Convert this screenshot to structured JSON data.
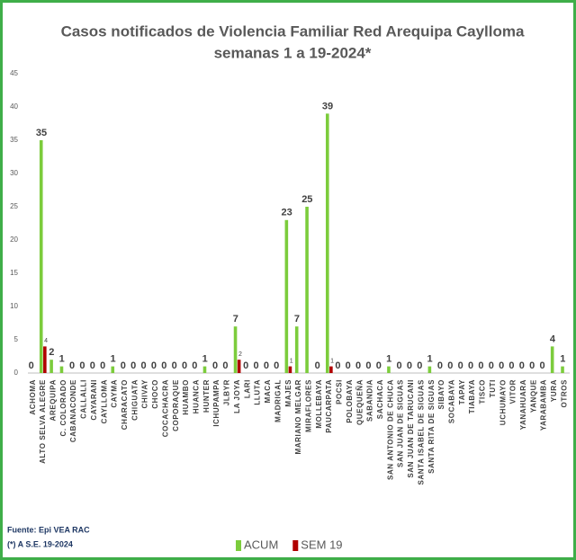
{
  "chart_data": {
    "type": "bar",
    "title": "Casos notificados  de Violencia Familiar Red Arequipa Caylloma",
    "subtitle": "semanas 1 a 19-2024*",
    "categories": [
      "ACHOMA",
      "ALTO SELVA ALEGRE",
      "AREQUIPA",
      "C. COLORADO",
      "CABANACONDE",
      "CALLALLI",
      "CAYARANI",
      "CAYLLOMA",
      "CAYMA",
      "CHARACATO",
      "CHIGUATA",
      "CHIVAY",
      "CHOCO",
      "COCACHACRA",
      "COPORAQUE",
      "HUAMBO",
      "HUANCA",
      "HUNTER",
      "ICHUPAMPA",
      "JLBYR",
      "LA JOYA",
      "LARI",
      "LLUTA",
      "MACA",
      "MADRIGAL",
      "MAJES",
      "MARIANO MELGAR",
      "MIRAFLORES",
      "MOLLEBAYA",
      "PAUCARPATA",
      "POCSI",
      "POLOBAYA",
      "QUEQUEÑA",
      "SABANDIA",
      "SACHACA",
      "SAN ANTONIO DE CHUCA",
      "SAN JUAN DE SIGUAS",
      "SAN JUAN DE TARUCANI",
      "SANTA ISABEL DE SIGUAS",
      "SANTA RITA DE SIGUAS",
      "SIBAYO",
      "SOCABAYA",
      "TAPAY",
      "TIABAYA",
      "TISCO",
      "TUTI",
      "UCHUMAYO",
      "VITOR",
      "YANAHUARA",
      "YANQUE",
      "YARABAMBA",
      "YURA",
      "OTROS"
    ],
    "series": [
      {
        "name": "ACUM",
        "color": "#7ccc3c",
        "values": [
          0,
          35,
          2,
          1,
          0,
          0,
          0,
          0,
          1,
          0,
          0,
          0,
          0,
          0,
          0,
          0,
          0,
          1,
          0,
          0,
          7,
          0,
          0,
          0,
          0,
          23,
          7,
          25,
          0,
          39,
          0,
          0,
          0,
          0,
          0,
          1,
          0,
          0,
          0,
          1,
          0,
          0,
          0,
          0,
          0,
          0,
          0,
          0,
          0,
          0,
          0,
          4,
          1
        ]
      },
      {
        "name": "SEM 19",
        "color": "#b00000",
        "values": [
          0,
          4,
          0,
          0,
          0,
          0,
          0,
          0,
          0,
          0,
          0,
          0,
          0,
          0,
          0,
          0,
          0,
          0,
          0,
          0,
          2,
          0,
          0,
          0,
          0,
          1,
          0,
          0,
          0,
          1,
          0,
          0,
          0,
          0,
          0,
          0,
          0,
          0,
          0,
          0,
          0,
          0,
          0,
          0,
          0,
          0,
          0,
          0,
          0,
          0,
          0,
          0,
          0
        ]
      }
    ],
    "ylim": [
      0,
      45
    ],
    "yticks": [
      0,
      5,
      10,
      15,
      20,
      25,
      30,
      35,
      40,
      45
    ],
    "grid": false,
    "source": "Fuente: Epi VEA RAC",
    "note": "(*) A S.E. 19-2024"
  }
}
